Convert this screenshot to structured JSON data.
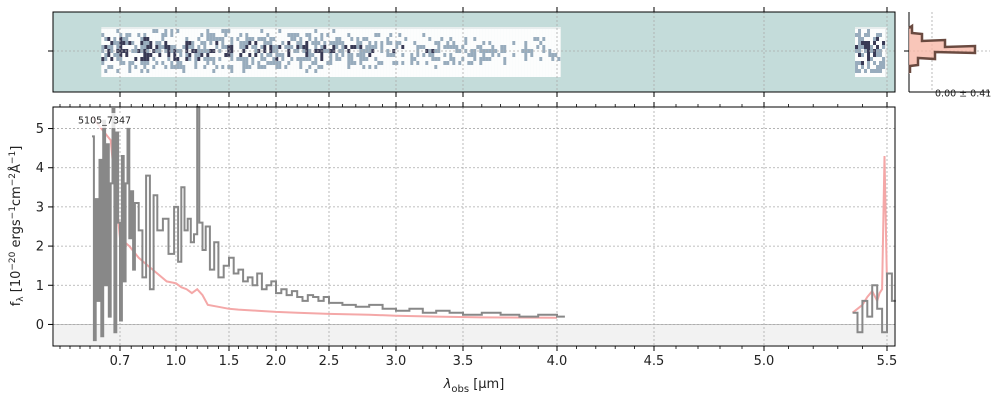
{
  "chart_data": [
    {
      "type": "heatmap",
      "title": "",
      "description_panel": "2D spectrum",
      "background": "#c4dcda",
      "colormap": [
        "#ffffff",
        "#8aa0b4",
        "#1a1a3a"
      ],
      "x_range_um": [
        0.6,
        5.5
      ],
      "covered_segments_um": [
        [
          0.6,
          4.02
        ],
        [
          5.37,
          5.5
        ]
      ]
    },
    {
      "type": "line",
      "title": "",
      "xlabel_tex": "λ",
      "xlabel_sub": "obs",
      "xlabel_unit": "[μm]",
      "ylabel_main": "f",
      "ylabel_sub": "λ",
      "ylabel_rest": "[10",
      "ylabel_exp1": "−20",
      "ylabel_mid": " ergs",
      "ylabel_exp2": "−1",
      "ylabel_mid2": "cm",
      "ylabel_exp3": "−2",
      "ylabel_mid3": "Å",
      "ylabel_exp4": "−1",
      "ylabel_end": "]",
      "annotation": "5105_7347",
      "x_tick_labels": [
        "0.7",
        "1.0",
        "1.5",
        "2.0",
        "2.5",
        "3.0",
        "3.5",
        "4.0",
        "4.5",
        "5.0",
        "5.5"
      ],
      "x_tick_values": [
        0.7,
        1.0,
        1.5,
        2.0,
        2.5,
        3.0,
        3.5,
        4.0,
        4.5,
        5.0,
        5.5
      ],
      "y_ticks": [
        0,
        1,
        2,
        3,
        4,
        5
      ],
      "ylim": [
        -0.55,
        5.55
      ],
      "xlim": [
        0.52,
        5.52
      ],
      "grid": true,
      "colors": {
        "data": "#888888",
        "model": "#f4a8a8",
        "zero_band": "#f2f2f2"
      },
      "series": [
        {
          "style": "step",
          "values_x": [
            0.55,
            0.56,
            0.57,
            0.58,
            0.59,
            0.6,
            0.61,
            0.62,
            0.63,
            0.64,
            0.65,
            0.66,
            0.67,
            0.68,
            0.69,
            0.7,
            0.71,
            0.72,
            0.73,
            0.74,
            0.75,
            0.76,
            0.77,
            0.78,
            0.8,
            0.82,
            0.84,
            0.86,
            0.88,
            0.9,
            0.93,
            0.96,
            0.99,
            1.02,
            1.05,
            1.08,
            1.11,
            1.14,
            1.17,
            1.2,
            1.22,
            1.25,
            1.28,
            1.32,
            1.36,
            1.4,
            1.45,
            1.5,
            1.55,
            1.6,
            1.65,
            1.7,
            1.75,
            1.8,
            1.85,
            1.9,
            1.95,
            2.0,
            2.05,
            2.1,
            2.15,
            2.2,
            2.25,
            2.3,
            2.35,
            2.4,
            2.45,
            2.5,
            2.6,
            2.7,
            2.8,
            2.9,
            3.0,
            3.1,
            3.2,
            3.3,
            3.4,
            3.5,
            3.6,
            3.7,
            3.8,
            3.9,
            4.0,
            4.02
          ],
          "values_y": [
            4.8,
            -0.4,
            3.2,
            0.6,
            4.2,
            -0.3,
            5.2,
            1.0,
            4.6,
            0.2,
            3.6,
            5.5,
            -0.2,
            4.9,
            2.6,
            0.1,
            4.3,
            1.1,
            3.6,
            5.0,
            2.2,
            3.4,
            1.4,
            3.1,
            2.4,
            1.2,
            3.8,
            0.9,
            3.3,
            2.4,
            2.7,
            1.8,
            3.0,
            1.6,
            3.5,
            2.4,
            2.7,
            2.1,
            2.3,
            5.6,
            2.6,
            1.9,
            2.5,
            1.4,
            2.1,
            1.2,
            1.5,
            1.7,
            1.3,
            1.4,
            1.1,
            1.2,
            1.0,
            1.3,
            0.9,
            1.0,
            1.1,
            0.8,
            0.9,
            0.75,
            0.85,
            0.7,
            0.6,
            0.75,
            0.7,
            0.6,
            0.7,
            0.55,
            0.5,
            0.45,
            0.5,
            0.4,
            0.35,
            0.4,
            0.3,
            0.35,
            0.3,
            0.25,
            0.3,
            0.25,
            0.2,
            0.25,
            0.2,
            0.2
          ]
        },
        {
          "style": "step",
          "values_x": [
            5.36,
            5.38,
            5.4,
            5.42,
            5.44,
            5.46,
            5.48,
            5.5,
            5.52
          ],
          "values_y": [
            0.3,
            -0.2,
            0.6,
            0.2,
            1.0,
            0.4,
            -0.2,
            1.3,
            0.6
          ]
        },
        {
          "style": "model",
          "values_x": [
            0.55,
            0.6,
            0.65,
            0.7,
            0.75,
            0.8,
            0.85,
            0.9,
            0.95,
            1.0,
            1.05,
            1.1,
            1.15,
            1.2,
            1.25,
            1.3,
            1.4,
            1.5,
            1.6,
            1.8,
            2.0,
            2.2,
            2.5,
            2.8,
            3.0,
            3.3,
            3.6,
            4.0
          ],
          "values_y": [
            5.3,
            5.0,
            4.7,
            2.2,
            2.0,
            1.7,
            1.5,
            1.3,
            1.1,
            1.05,
            0.95,
            0.9,
            0.8,
            0.9,
            0.75,
            0.5,
            0.45,
            0.4,
            0.38,
            0.35,
            0.32,
            0.3,
            0.27,
            0.25,
            0.22,
            0.2,
            0.18,
            0.17
          ]
        },
        {
          "style": "model",
          "values_x": [
            5.36,
            5.38,
            5.4,
            5.42,
            5.44,
            5.46,
            5.47,
            5.48,
            5.49,
            5.5
          ],
          "values_y": [
            0.3,
            0.4,
            0.5,
            0.7,
            0.85,
            0.6,
            0.8,
            0.9,
            4.3,
            1.0
          ]
        }
      ]
    },
    {
      "type": "histogram",
      "caption": "0.00 ± 0.41",
      "colors": {
        "step": "#6a4a40",
        "fill": "#f7b8a8"
      }
    }
  ]
}
